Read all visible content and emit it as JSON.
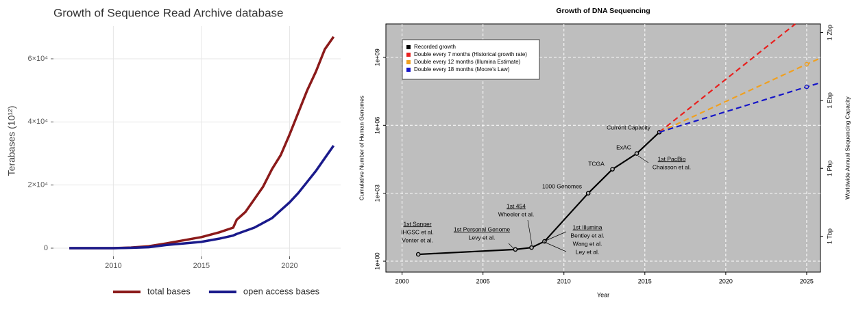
{
  "chart_data": [
    {
      "type": "line",
      "title": "Growth of Sequence Read Archive database",
      "y_label": "Terabases (10¹²)",
      "x": [
        2007.5,
        2008,
        2009,
        2010,
        2011,
        2012,
        2013,
        2014,
        2015,
        2016,
        2016.8,
        2017,
        2017.5,
        2018,
        2018.5,
        2019,
        2019.5,
        2020,
        2020.5,
        2021,
        2021.5,
        2022,
        2022.5
      ],
      "series": [
        {
          "name": "total bases",
          "color": "#8b1a1a",
          "values": [
            0,
            0,
            0,
            0,
            200,
            600,
            1500,
            2500,
            3500,
            5000,
            6500,
            9000,
            11500,
            15500,
            19500,
            25000,
            29500,
            36000,
            43000,
            50000,
            56000,
            63000,
            67000
          ]
        },
        {
          "name": "open access bases",
          "color": "#1a1a8b",
          "values": [
            0,
            0,
            0,
            0,
            100,
            300,
            1000,
            1500,
            2000,
            3000,
            4000,
            4500,
            5500,
            6500,
            8000,
            9500,
            12000,
            14500,
            17500,
            21000,
            24500,
            28500,
            32500
          ]
        }
      ],
      "xlim": [
        2006.6,
        2022.9
      ],
      "xticks": [
        2010,
        2015,
        2020
      ],
      "ylim": [
        -2600,
        70400
      ],
      "yticks": [
        0,
        {
          "value": 20000,
          "label": "2×10⁴"
        },
        {
          "value": 40000,
          "label": "4×10⁴"
        },
        {
          "value": 60000,
          "label": "6×10⁴"
        }
      ],
      "grid": true,
      "background": "#ffffff",
      "grid_color": "#e6e6e6",
      "legend": "bottom"
    },
    {
      "type": "line",
      "title": "Growth of DNA Sequencing",
      "x_label": "Year",
      "y_label": "Cumulative Number of Human Genomes",
      "y2_label": "Worldwide Annual Sequencing Capacity",
      "series": [
        {
          "name": "Recorded growth",
          "color": "#000000",
          "x": [
            2001,
            2007,
            2008,
            2008.8,
            2011.5,
            2013,
            2014.5,
            2015.9
          ],
          "values": [
            2,
            3.3,
            4,
            7.5,
            1000,
            11500,
            57000,
            500000
          ],
          "markers": [
            true,
            true,
            true,
            true,
            true,
            true,
            true,
            true
          ]
        },
        {
          "name": "Double every 7 months (Historical growth rate)",
          "color": "#e8201e",
          "x": [
            2015.9,
            2024.3
          ],
          "values": [
            500000,
            30000000000
          ],
          "dashed": true
        },
        {
          "name": "Double every 12 months (Illumina Estimate)",
          "color": "#f0a020",
          "x": [
            2015.9,
            2025,
            2025.85
          ],
          "values": [
            500000,
            500000000,
            930000000
          ],
          "dashed": true,
          "markers": [
            false,
            true,
            false
          ]
        },
        {
          "name": "Double every 18 months (Moore's Law)",
          "color": "#1515c8",
          "x": [
            2015.9,
            2025,
            2025.85
          ],
          "values": [
            500000,
            50000000,
            76000000
          ],
          "dashed": true,
          "markers": [
            false,
            true,
            false
          ]
        }
      ],
      "xlim": [
        1999,
        2025.85
      ],
      "xticks": [
        2000,
        2005,
        2010,
        2015,
        2020,
        2025
      ],
      "ylim": [
        0.33,
        30000000000
      ],
      "log_scale": true,
      "yticks": [
        {
          "value": 1,
          "label": "1e+00"
        },
        {
          "value": 1000,
          "label": "1e+03"
        },
        {
          "value": 1000000,
          "label": "1e+06"
        },
        {
          "value": 1000000000,
          "label": "1e+09"
        }
      ],
      "y2lim": [
        26000000000,
        2400000000000000000000
      ],
      "y2_log_scale": true,
      "y2ticks": [
        {
          "value": 1000000000000,
          "label": "1 Tbp"
        },
        {
          "value": 1000000000000000,
          "label": "1 Pbp"
        },
        {
          "value": 1000000000000000000,
          "label": "1 Ebp"
        },
        {
          "value": 1000000000000000000000,
          "label": "1 Zbp"
        }
      ],
      "grid": true,
      "background": "#bebebe",
      "grid_color": "#ffffff",
      "legend": "top-left",
      "annotations": [
        {
          "lines": [
            "1st Sanger",
            "IHGSC et al.",
            "Venter et al."
          ],
          "underline_first": true
        },
        {
          "lines": [
            "1st Personal Genome",
            "Levy et al."
          ],
          "underline_first": true
        },
        {
          "lines": [
            "1st 454",
            "Wheeler et al."
          ],
          "underline_first": true
        },
        {
          "lines": [
            "1st Illumina",
            "Bentley et al.",
            "Wang et al.",
            "Ley et al."
          ],
          "underline_first": true
        },
        {
          "lines": [
            "1000 Genomes"
          ]
        },
        {
          "lines": [
            "TCGA"
          ]
        },
        {
          "lines": [
            "ExAC"
          ]
        },
        {
          "lines": [
            "1st PacBio",
            "Chaisson et al."
          ],
          "underline_first": true
        },
        {
          "lines": [
            "Current Capacity"
          ]
        }
      ]
    }
  ]
}
